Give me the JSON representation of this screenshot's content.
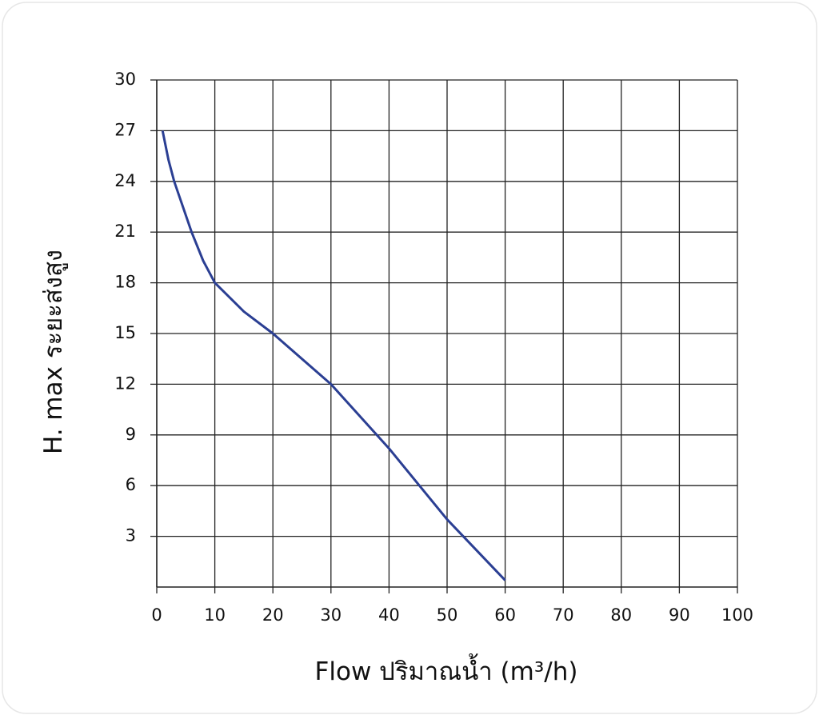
{
  "chart_data": {
    "type": "line",
    "x_label": "Flow  ปริมาณน้ำ (m³/h)",
    "y_label": "H. max  ระยะส่งสูง",
    "xlim": [
      0,
      100
    ],
    "xticks": [
      0,
      10,
      20,
      30,
      40,
      50,
      60,
      70,
      80,
      90,
      100
    ],
    "ylim": [
      0,
      30
    ],
    "yticks": [
      3,
      6,
      9,
      12,
      15,
      18,
      21,
      24,
      27,
      30
    ],
    "grid": true,
    "series": [
      {
        "color": "#2b3f93",
        "x": [
          1,
          2,
          3,
          4,
          6,
          8,
          10,
          15,
          20,
          30,
          40,
          50,
          60
        ],
        "values": [
          27,
          25.3,
          24,
          23,
          21,
          19.3,
          18,
          16.3,
          15,
          12,
          8.2,
          4,
          0.4
        ]
      }
    ]
  }
}
